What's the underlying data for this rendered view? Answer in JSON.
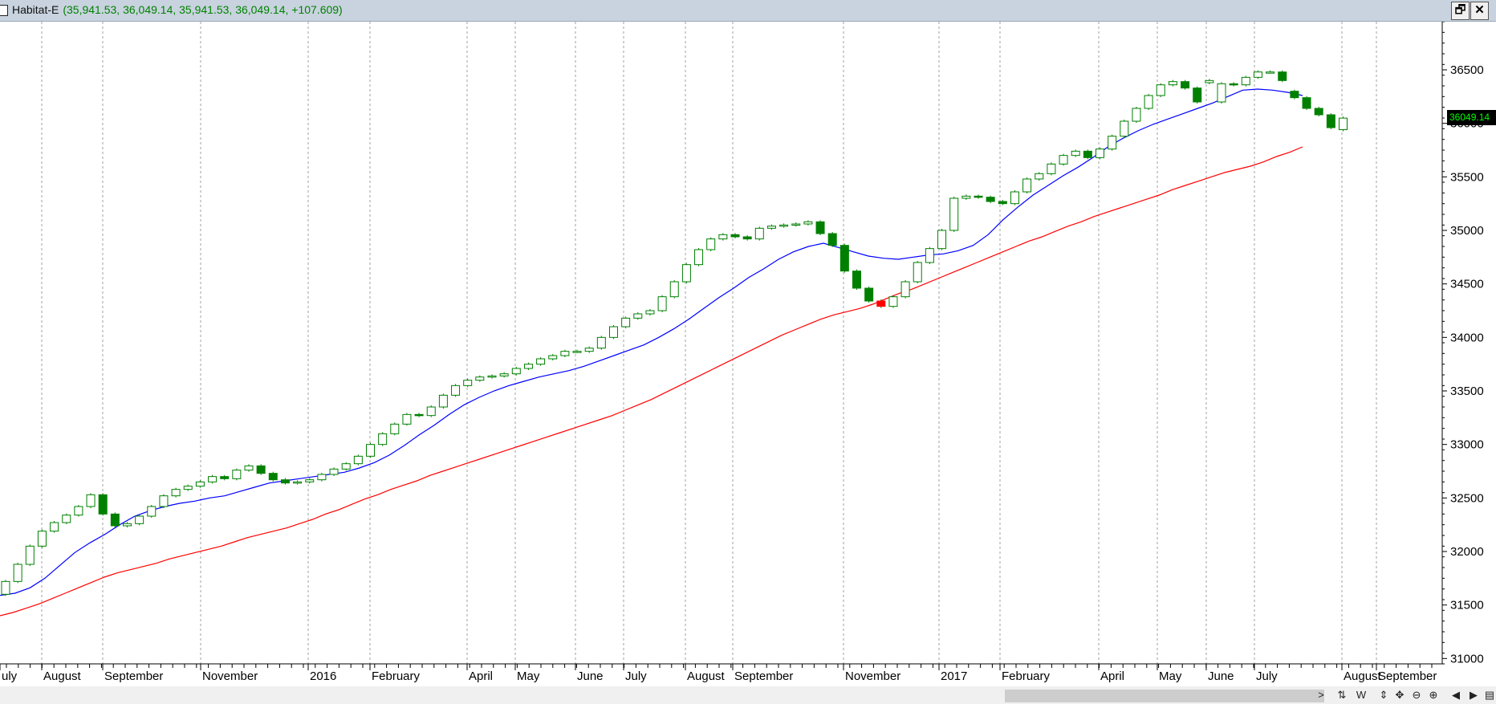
{
  "window": {
    "title": "Habitat-E",
    "title_values": "(35,941.53, 36,049.14, 35,941.53, 36,049.14, +107.609)",
    "restore_glyph": "🗗",
    "close_glyph": "✕"
  },
  "colors": {
    "background": "#ffffff",
    "up_candle": "#008000",
    "down_candle": "#008000",
    "highlight_candle": "#ff0000",
    "sma_fast": "#0000ff",
    "sma_slow": "#ff0000",
    "grid": "#a0a0a0",
    "price_tag_bg": "#000000",
    "price_tag_text": "#00ff00"
  },
  "statusbar": {
    "icons": [
      {
        "name": "scroll-right-icon",
        "glyph": ">"
      },
      {
        "name": "sync-icon",
        "glyph": "⇅"
      },
      {
        "name": "weekly-icon",
        "glyph": "W"
      },
      {
        "name": "vertical-resize-icon",
        "glyph": "⇕"
      },
      {
        "name": "move-icon",
        "glyph": "✥"
      },
      {
        "name": "zoom-out-icon",
        "glyph": "⊖"
      },
      {
        "name": "zoom-in-icon",
        "glyph": "⊕"
      },
      {
        "name": "nav-left-icon",
        "glyph": "◀"
      },
      {
        "name": "nav-right-icon",
        "glyph": "▶"
      },
      {
        "name": "layout-icon",
        "glyph": "▤"
      }
    ]
  },
  "chart_data": {
    "type": "candlestick",
    "title": "Habitat-E",
    "period": "weekly",
    "ylim": [
      30950,
      36950
    ],
    "y_ticks": [
      31000,
      31500,
      32000,
      32500,
      33000,
      33500,
      34000,
      34500,
      35000,
      35500,
      36000,
      36500
    ],
    "last_price_label": "36049.14",
    "x_month_labels": [
      "uly",
      "August",
      "September",
      "November",
      "2016",
      "February",
      "April",
      "May",
      "June",
      "July",
      "August",
      "September",
      "November",
      "2017",
      "February",
      "April",
      "May",
      "June",
      "July",
      "August",
      "September"
    ],
    "series": [
      {
        "name": "price",
        "style": "candlestick",
        "open": [
          31600,
          31720,
          31880,
          32050,
          32190,
          32270,
          32340,
          32420,
          32530,
          32350,
          32240,
          32260,
          32330,
          32420,
          32520,
          32580,
          32610,
          32650,
          32700,
          32680,
          32760,
          32800,
          32730,
          32670,
          32640,
          32650,
          32670,
          32720,
          32770,
          32820,
          32890,
          33000,
          33100,
          33190,
          33280,
          33270,
          33350,
          33460,
          33550,
          33600,
          33630,
          33640,
          33660,
          33710,
          33750,
          33800,
          33830,
          33870,
          33870,
          33900,
          34000,
          34100,
          34180,
          34220,
          34250,
          34380,
          34520,
          34680,
          34820,
          34920,
          34960,
          34940,
          34920,
          35020,
          35040,
          35050,
          35060,
          35080,
          34970,
          34860,
          34620,
          34460,
          34340,
          34290,
          34380,
          34520,
          34700,
          34830,
          35000,
          35300,
          35320,
          35310,
          35270,
          35250,
          35360,
          35480,
          35530,
          35620,
          35700,
          35740,
          35680,
          35760,
          35880,
          36020,
          36140,
          36260,
          36360,
          36390,
          36330,
          36380,
          36200,
          36370,
          36360,
          36430,
          36480,
          36480,
          36300,
          36240,
          36140,
          36080,
          35941
        ],
        "close": [
          31720,
          31880,
          32050,
          32190,
          32270,
          32340,
          32420,
          32530,
          32350,
          32240,
          32260,
          32330,
          32420,
          32520,
          32580,
          32610,
          32650,
          32700,
          32680,
          32760,
          32800,
          32730,
          32670,
          32640,
          32650,
          32670,
          32720,
          32770,
          32820,
          32890,
          33000,
          33100,
          33190,
          33280,
          33270,
          33350,
          33460,
          33550,
          33600,
          33630,
          33640,
          33660,
          33710,
          33750,
          33800,
          33830,
          33870,
          33870,
          33900,
          34000,
          34100,
          34180,
          34220,
          34250,
          34380,
          34520,
          34680,
          34820,
          34920,
          34960,
          34940,
          34920,
          35020,
          35040,
          35050,
          35060,
          35080,
          34970,
          34860,
          34620,
          34460,
          34340,
          34290,
          34380,
          34520,
          34700,
          34830,
          35000,
          35300,
          35320,
          35310,
          35270,
          35250,
          35360,
          35480,
          35530,
          35620,
          35700,
          35740,
          35680,
          35760,
          35880,
          36020,
          36140,
          36260,
          36360,
          36390,
          36330,
          36200,
          36400,
          36370,
          36360,
          36430,
          36480,
          36480,
          36400,
          36240,
          36140,
          36080,
          35960,
          36049
        ]
      },
      {
        "name": "blue moving average",
        "style": "line",
        "values": [
          31590,
          31610,
          31660,
          31750,
          31870,
          31990,
          32080,
          32160,
          32250,
          32330,
          32380,
          32420,
          32450,
          32470,
          32500,
          32520,
          32560,
          32600,
          32640,
          32660,
          32680,
          32700,
          32720,
          32740,
          32780,
          32830,
          32900,
          32990,
          33090,
          33180,
          33280,
          33370,
          33440,
          33500,
          33550,
          33590,
          33630,
          33660,
          33690,
          33730,
          33780,
          33830,
          33880,
          33930,
          34000,
          34080,
          34170,
          34270,
          34370,
          34460,
          34560,
          34640,
          34730,
          34800,
          34850,
          34880,
          34840,
          34800,
          34760,
          34740,
          34730,
          34750,
          34770,
          34780,
          34810,
          34860,
          34960,
          35100,
          35220,
          35330,
          35420,
          35510,
          35590,
          35680,
          35780,
          35860,
          35930,
          35990,
          36040,
          36090,
          36140,
          36190,
          36250,
          36310,
          36320,
          36310,
          36290,
          36260
        ]
      },
      {
        "name": "red moving average",
        "style": "line",
        "values": [
          31400,
          31430,
          31470,
          31510,
          31560,
          31610,
          31660,
          31710,
          31760,
          31800,
          31830,
          31860,
          31890,
          31930,
          31960,
          31990,
          32020,
          32050,
          32090,
          32130,
          32160,
          32190,
          32220,
          32260,
          32300,
          32350,
          32390,
          32440,
          32490,
          32530,
          32580,
          32620,
          32660,
          32710,
          32750,
          32790,
          32830,
          32870,
          32910,
          32950,
          32990,
          33030,
          33070,
          33110,
          33150,
          33190,
          33230,
          33270,
          33320,
          33370,
          33420,
          33480,
          33540,
          33600,
          33660,
          33720,
          33780,
          33840,
          33900,
          33960,
          34020,
          34070,
          34120,
          34170,
          34210,
          34240,
          34270,
          34310,
          34360,
          34410,
          34450,
          34500,
          34550,
          34600,
          34650,
          34700,
          34750,
          34800,
          34850,
          34900,
          34940,
          34990,
          35040,
          35080,
          35130,
          35170,
          35210,
          35250,
          35290,
          35330,
          35380,
          35420,
          35460,
          35500,
          35540,
          35570,
          35600,
          35640,
          35690,
          35730,
          35780
        ]
      }
    ]
  }
}
